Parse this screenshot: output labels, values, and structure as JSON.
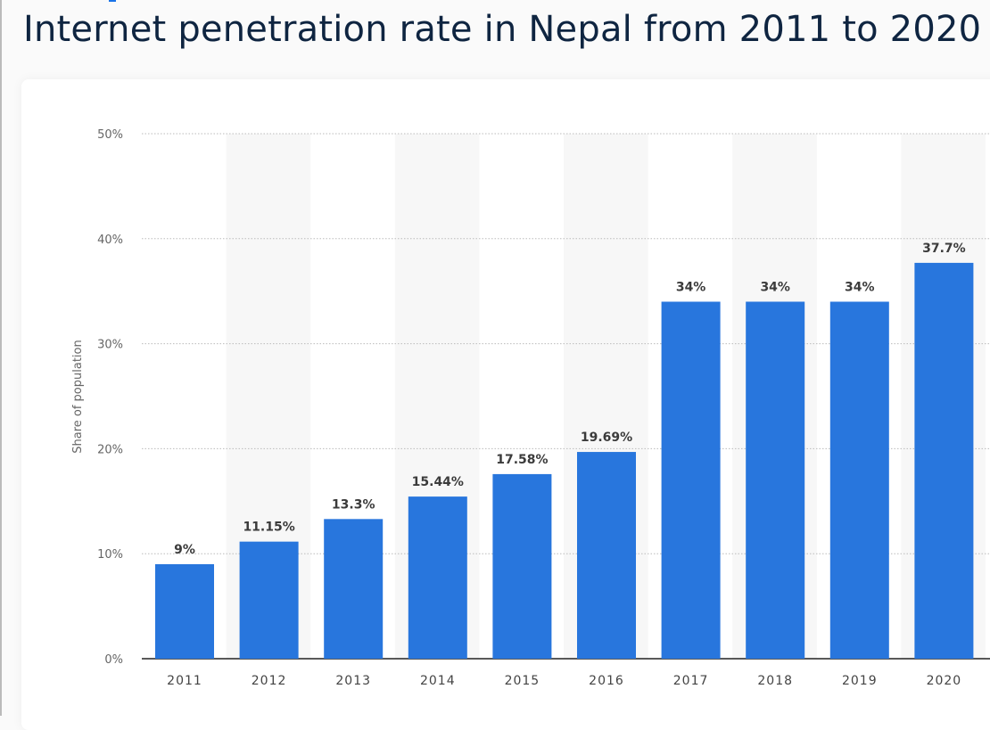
{
  "title": "Internet penetration rate in Nepal from 2011 to 2020",
  "chart_data": {
    "type": "bar",
    "title": "Internet penetration rate in Nepal from 2011 to 2020",
    "ylabel": "Share of population",
    "xlabel": "",
    "categories": [
      "2011",
      "2012",
      "2013",
      "2014",
      "2015",
      "2016",
      "2017",
      "2018",
      "2019",
      "2020"
    ],
    "values": [
      9,
      11.15,
      13.3,
      15.44,
      17.58,
      19.69,
      34,
      34,
      34,
      37.7
    ],
    "data_labels": [
      "9%",
      "11.15%",
      "13.3%",
      "15.44%",
      "17.58%",
      "19.69%",
      "34%",
      "34%",
      "34%",
      "37.7%"
    ],
    "ylim": [
      0,
      50
    ],
    "yticks": [
      "0%",
      "10%",
      "20%",
      "30%",
      "40%",
      "50%"
    ],
    "grid": true,
    "bar_color": "#2876dd"
  }
}
